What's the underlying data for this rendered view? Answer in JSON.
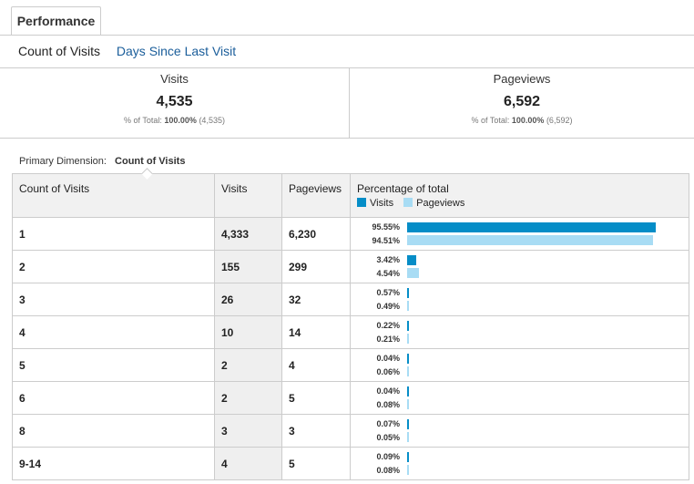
{
  "tab": {
    "label": "Performance"
  },
  "subtabs": {
    "active": "Count of Visits",
    "link": "Days Since Last Visit"
  },
  "summary": [
    {
      "label": "Visits",
      "value": "4,535",
      "pct_label": "% of Total:",
      "pct_value": "100.00%",
      "pct_count": "(4,535)"
    },
    {
      "label": "Pageviews",
      "value": "6,592",
      "pct_label": "% of Total:",
      "pct_value": "100.00%",
      "pct_count": "(6,592)"
    }
  ],
  "primary_dimension": {
    "label": "Primary Dimension:",
    "value": "Count of Visits"
  },
  "table": {
    "headers": [
      "Count of Visits",
      "Visits",
      "Pageviews",
      "Percentage of total"
    ],
    "legend": [
      {
        "label": "Visits",
        "color": "#058dc7"
      },
      {
        "label": "Pageviews",
        "color": "#a8dcf4"
      }
    ],
    "rows": [
      {
        "dim": "1",
        "visits": "4,333",
        "pageviews": "6,230",
        "visits_pct": "95.55%",
        "pageviews_pct": "94.51%",
        "v_frac": 0.9555,
        "p_frac": 0.9451
      },
      {
        "dim": "2",
        "visits": "155",
        "pageviews": "299",
        "visits_pct": "3.42%",
        "pageviews_pct": "4.54%",
        "v_frac": 0.0342,
        "p_frac": 0.0454
      },
      {
        "dim": "3",
        "visits": "26",
        "pageviews": "32",
        "visits_pct": "0.57%",
        "pageviews_pct": "0.49%",
        "v_frac": 0.0057,
        "p_frac": 0.0049
      },
      {
        "dim": "4",
        "visits": "10",
        "pageviews": "14",
        "visits_pct": "0.22%",
        "pageviews_pct": "0.21%",
        "v_frac": 0.0022,
        "p_frac": 0.0021
      },
      {
        "dim": "5",
        "visits": "2",
        "pageviews": "4",
        "visits_pct": "0.04%",
        "pageviews_pct": "0.06%",
        "v_frac": 0.0004,
        "p_frac": 0.0006
      },
      {
        "dim": "6",
        "visits": "2",
        "pageviews": "5",
        "visits_pct": "0.04%",
        "pageviews_pct": "0.08%",
        "v_frac": 0.0004,
        "p_frac": 0.0008
      },
      {
        "dim": "8",
        "visits": "3",
        "pageviews": "3",
        "visits_pct": "0.07%",
        "pageviews_pct": "0.05%",
        "v_frac": 0.0007,
        "p_frac": 0.0005
      },
      {
        "dim": "9-14",
        "visits": "4",
        "pageviews": "5",
        "visits_pct": "0.09%",
        "pageviews_pct": "0.08%",
        "v_frac": 0.0009,
        "p_frac": 0.0008
      }
    ]
  }
}
